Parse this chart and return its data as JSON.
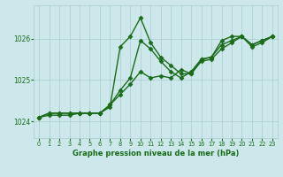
{
  "xlabel": "Graphe pression niveau de la mer (hPa)",
  "bg_color": "#cce8ea",
  "grid_color": "#aacdd0",
  "line_color": "#1a6b1a",
  "marker": "D",
  "markersize": 2.5,
  "linewidth": 1.0,
  "xlim": [
    -0.5,
    23.5
  ],
  "ylim": [
    1023.6,
    1026.8
  ],
  "yticks": [
    1024,
    1025,
    1026
  ],
  "xticks": [
    0,
    1,
    2,
    3,
    4,
    5,
    6,
    7,
    8,
    9,
    10,
    11,
    12,
    13,
    14,
    15,
    16,
    17,
    18,
    19,
    20,
    21,
    22,
    23
  ],
  "series": [
    [
      1024.1,
      1024.2,
      1024.2,
      1024.2,
      1024.2,
      1024.2,
      1024.2,
      1024.35,
      1025.8,
      1026.05,
      1026.5,
      1025.9,
      1025.55,
      1025.35,
      1025.15,
      1025.15,
      1025.5,
      1025.55,
      1025.95,
      1026.05,
      1026.05,
      1025.85,
      1025.95,
      1026.05
    ],
    [
      1024.1,
      1024.2,
      1024.2,
      1024.2,
      1024.2,
      1024.2,
      1024.2,
      1024.4,
      1024.75,
      1025.05,
      1025.95,
      1025.75,
      1025.45,
      1025.2,
      1025.05,
      1025.2,
      1025.5,
      1025.55,
      1025.85,
      1025.95,
      1026.05,
      1025.85,
      1025.95,
      1026.05
    ],
    [
      1024.1,
      1024.15,
      1024.15,
      1024.15,
      1024.2,
      1024.2,
      1024.2,
      1024.4,
      1024.65,
      1024.9,
      1025.2,
      1025.05,
      1025.1,
      1025.05,
      1025.25,
      1025.15,
      1025.45,
      1025.5,
      1025.75,
      1025.9,
      1026.05,
      1025.8,
      1025.9,
      1026.05
    ]
  ]
}
